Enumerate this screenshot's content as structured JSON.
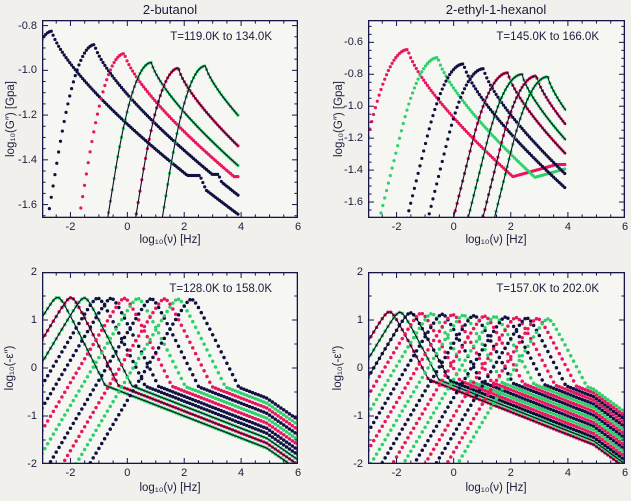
{
  "figure": {
    "bg": "#f1f0ec",
    "plot_bg": "#f6f6f2",
    "axis_color": "#15154a",
    "text_color": "#1c1c3c",
    "fit_line_color": "#0c0c28"
  },
  "palette": {
    "navy": "#101042",
    "crimson": "#e7175f",
    "green": "#2ed06b"
  },
  "chart_data": [
    {
      "type": "scatter",
      "title": "2-butanol",
      "annotation": "T=119.0K to 134.0K",
      "xlabel": "log₁₀(ν) [Hz]",
      "ylabel": "log₁₀(G″) [Gpa]",
      "xlim": [
        -3,
        6
      ],
      "ylim": [
        -1.66,
        -0.775
      ],
      "xticks": [
        -2,
        0,
        2,
        4,
        6
      ],
      "xtick_labels": [
        "-2",
        "0",
        "2",
        "4",
        "6"
      ],
      "yticks": [
        -0.8,
        -1.0,
        -1.2,
        -1.4,
        -1.6
      ],
      "ytick_labels": [
        "-0.8",
        "-1.0",
        "-1.2",
        "-1.4",
        "-1.6"
      ],
      "x_minor_step": 0.5,
      "y_minor_step": 0.05,
      "x_data_max": 3.92,
      "dot_r": 1.6,
      "dot_dx": 0.065,
      "shape": {
        "kind": "gpeak",
        "cL": 0.3,
        "capL": 0.78,
        "aR": 0.2
      },
      "series": [
        {
          "color": "navy",
          "xp": -2.65,
          "yp": -0.825,
          "line": false,
          "bump": [
            3.55,
            5.2,
            0.645
          ]
        },
        {
          "color": "navy",
          "xp": -1.15,
          "yp": -0.885,
          "line": false,
          "bump": [
            3.4,
            4.35,
            0.58
          ]
        },
        {
          "color": "crimson",
          "xp": -0.1,
          "yp": -0.925,
          "line": false,
          "bump": [
            3.55,
            5.1,
            0.55
          ]
        },
        {
          "color": "green",
          "xp": 0.85,
          "yp": -0.965,
          "line": true,
          "bump": [
            3.8,
            5.5,
            0.6
          ]
        },
        {
          "color": "crimson",
          "xp": 1.8,
          "yp": -0.99,
          "line": true,
          "bump": null
        },
        {
          "color": "green",
          "xp": 2.75,
          "yp": -0.98,
          "line": true,
          "bump": null
        }
      ]
    },
    {
      "type": "scatter",
      "title": "2-ethyl-1-hexanol",
      "annotation": "T=145.0K to 166.0K",
      "xlabel": "log₁₀(ν) [Hz]",
      "ylabel": "log₁₀(G″) [Gpa]",
      "xlim": [
        -3,
        6
      ],
      "ylim": [
        -1.7,
        -0.46
      ],
      "xticks": [
        -2,
        0,
        2,
        4,
        6
      ],
      "xtick_labels": [
        "-2",
        "0",
        "2",
        "4",
        "6"
      ],
      "yticks": [
        -0.6,
        -0.8,
        -1.0,
        -1.2,
        -1.4,
        -1.6
      ],
      "ytick_labels": [
        "-0.6",
        "-0.8",
        "-1.0",
        "-1.2",
        "-1.4",
        "-1.6"
      ],
      "x_minor_step": 0.5,
      "y_minor_step": 0.05,
      "x_data_max": 3.95,
      "dot_r": 1.6,
      "dot_dx": 0.065,
      "shape": {
        "kind": "gpeak",
        "cL": 0.28,
        "capL": 0.72,
        "aR": 0.3
      },
      "series": [
        {
          "color": "crimson",
          "xp": -1.6,
          "yp": -0.645,
          "line": false,
          "bump": [
            5.2,
            99,
            0.72
          ]
        },
        {
          "color": "green",
          "xp": -0.55,
          "yp": -0.695,
          "line": false,
          "bump": [
            5.2,
            99,
            0.66
          ]
        },
        {
          "color": "navy",
          "xp": 0.35,
          "yp": -0.735,
          "line": false,
          "bump": [
            5.2,
            99,
            0.72
          ]
        },
        {
          "color": "navy",
          "xp": 1.05,
          "yp": -0.765,
          "line": false,
          "bump": [
            5.2,
            99,
            0.72
          ]
        },
        {
          "color": "crimson",
          "xp": 1.9,
          "yp": -0.79,
          "line": true,
          "bump": null
        },
        {
          "color": "green",
          "xp": 2.4,
          "yp": -0.8,
          "line": true,
          "bump": null
        },
        {
          "color": "crimson",
          "xp": 2.9,
          "yp": -0.81,
          "line": true,
          "bump": null
        },
        {
          "color": "green",
          "xp": 3.3,
          "yp": -0.815,
          "line": true,
          "bump": null
        }
      ]
    },
    {
      "type": "scatter",
      "annotation": "T=128.0K to 158.0K",
      "xlabel": "log₁₀(ν) [Hz]",
      "ylabel": "log₁₀(-ε″)",
      "xlim": [
        -3,
        6
      ],
      "ylim": [
        -2,
        2
      ],
      "xticks": [
        -2,
        0,
        2,
        4,
        6
      ],
      "xtick_labels": [
        "-2",
        "0",
        "2",
        "4",
        "6"
      ],
      "yticks": [
        2,
        1,
        0,
        -1,
        -2
      ],
      "ytick_labels": [
        "2",
        "1",
        "0",
        "-1",
        "-2"
      ],
      "x_minor_step": 0.5,
      "y_minor_step": 0.5,
      "x_data_max": 6.05,
      "dot_r": 1.75,
      "dot_dx": 0.1,
      "shape": {
        "kind": "epeak",
        "aL": 1.0,
        "aR": 1.2,
        "wdrop": 2.0,
        "wslope": 0.23,
        "droop": 0.18
      },
      "series": [
        {
          "color": "green",
          "xp": -2.45,
          "yp": 1.47,
          "line": true
        },
        {
          "color": "crimson",
          "xp": -1.98,
          "yp": 1.465,
          "line": true
        },
        {
          "color": "green",
          "xp": -1.51,
          "yp": 1.46,
          "line": true
        },
        {
          "color": "navy",
          "xp": -1.04,
          "yp": 1.455,
          "line": false
        },
        {
          "color": "navy",
          "xp": -0.57,
          "yp": 1.45,
          "line": false
        },
        {
          "color": "crimson",
          "xp": -0.1,
          "yp": 1.45,
          "line": false
        },
        {
          "color": "green",
          "xp": 0.37,
          "yp": 1.445,
          "line": false
        },
        {
          "color": "navy",
          "xp": 0.84,
          "yp": 1.44,
          "line": false
        },
        {
          "color": "crimson",
          "xp": 1.31,
          "yp": 1.44,
          "line": false
        },
        {
          "color": "green",
          "xp": 1.78,
          "yp": 1.435,
          "line": false
        },
        {
          "color": "navy",
          "xp": 2.25,
          "yp": 1.43,
          "line": false
        }
      ]
    },
    {
      "type": "scatter",
      "annotation": "T=157.0K to 202.0K",
      "xlabel": "log₁₀(ν) [Hz]",
      "ylabel": "log₁₀(-ε″)",
      "xlim": [
        -3,
        6
      ],
      "ylim": [
        -2,
        2
      ],
      "xticks": [
        -2,
        0,
        2,
        4,
        6
      ],
      "xtick_labels": [
        "-2",
        "0",
        "2",
        "4",
        "6"
      ],
      "yticks": [
        2,
        1,
        0,
        -1,
        -2
      ],
      "ytick_labels": [
        "2",
        "1",
        "0",
        "-1",
        "-2"
      ],
      "x_minor_step": 0.5,
      "y_minor_step": 0.5,
      "x_data_max": 6.05,
      "dot_r": 1.75,
      "dot_dx": 0.1,
      "shape": {
        "kind": "epeak",
        "aL": 1.0,
        "aR": 1.15,
        "wdrop": 1.65,
        "wslope": 0.235,
        "droop": 0.2
      },
      "series": [
        {
          "color": "crimson",
          "xp": -2.25,
          "yp": 1.17,
          "line": true
        },
        {
          "color": "green",
          "xp": -1.88,
          "yp": 1.16,
          "line": true
        },
        {
          "color": "navy",
          "xp": -1.51,
          "yp": 1.15,
          "line": true
        },
        {
          "color": "crimson",
          "xp": -1.14,
          "yp": 1.14,
          "line": false
        },
        {
          "color": "green",
          "xp": -0.77,
          "yp": 1.13,
          "line": false
        },
        {
          "color": "navy",
          "xp": -0.4,
          "yp": 1.12,
          "line": false
        },
        {
          "color": "crimson",
          "xp": -0.03,
          "yp": 1.11,
          "line": false
        },
        {
          "color": "green",
          "xp": 0.34,
          "yp": 1.1,
          "line": false
        },
        {
          "color": "navy",
          "xp": 0.71,
          "yp": 1.09,
          "line": false
        },
        {
          "color": "crimson",
          "xp": 1.08,
          "yp": 1.08,
          "line": false
        },
        {
          "color": "green",
          "xp": 1.45,
          "yp": 1.07,
          "line": false
        },
        {
          "color": "navy",
          "xp": 1.82,
          "yp": 1.06,
          "line": false
        },
        {
          "color": "crimson",
          "xp": 2.19,
          "yp": 1.05,
          "line": false
        },
        {
          "color": "navy",
          "xp": 2.56,
          "yp": 1.04,
          "line": false
        },
        {
          "color": "crimson",
          "xp": 2.93,
          "yp": 1.03,
          "line": false
        },
        {
          "color": "green",
          "xp": 3.3,
          "yp": 1.02,
          "line": false
        }
      ]
    }
  ]
}
